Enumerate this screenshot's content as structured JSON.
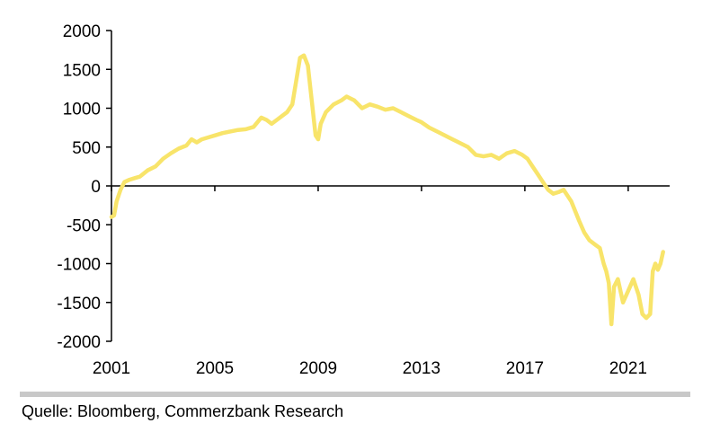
{
  "chart_data": {
    "type": "line",
    "title": "",
    "xlabel": "",
    "ylabel": "",
    "ylim": [
      -2000,
      2000
    ],
    "xlim": [
      2001.0,
      2022.5
    ],
    "y_ticks": [
      2000,
      1500,
      1000,
      500,
      0,
      -500,
      -1000,
      -1500,
      -2000
    ],
    "y_tick_labels": [
      "2000",
      "1500",
      "1000",
      "500",
      "0",
      "-500",
      "-1000",
      "-1500",
      "-2000"
    ],
    "x_ticks": [
      2001,
      2005,
      2009,
      2013,
      2017,
      2021
    ],
    "x_tick_labels": [
      "2001",
      "2005",
      "2009",
      "2013",
      "2017",
      "2021"
    ],
    "grid": false,
    "legend": "none",
    "series": [
      {
        "name": "Series",
        "color": "#f8e46a",
        "x": [
          2001.0,
          2001.1,
          2001.2,
          2001.35,
          2001.5,
          2001.7,
          2001.9,
          2002.1,
          2002.4,
          2002.7,
          2003.0,
          2003.3,
          2003.6,
          2003.9,
          2004.1,
          2004.3,
          2004.5,
          2004.7,
          2005.0,
          2005.3,
          2005.6,
          2005.9,
          2006.2,
          2006.5,
          2006.8,
          2007.0,
          2007.2,
          2007.4,
          2007.6,
          2007.8,
          2008.0,
          2008.15,
          2008.3,
          2008.45,
          2008.6,
          2008.75,
          2008.9,
          2009.0,
          2009.1,
          2009.3,
          2009.6,
          2009.9,
          2010.1,
          2010.4,
          2010.7,
          2011.0,
          2011.3,
          2011.6,
          2011.9,
          2012.2,
          2012.5,
          2012.8,
          2013.0,
          2013.3,
          2013.6,
          2013.9,
          2014.2,
          2014.5,
          2014.8,
          2015.1,
          2015.4,
          2015.7,
          2016.0,
          2016.3,
          2016.6,
          2016.9,
          2017.1,
          2017.3,
          2017.5,
          2017.7,
          2017.9,
          2018.1,
          2018.3,
          2018.5,
          2018.8,
          2019.1,
          2019.3,
          2019.5,
          2019.7,
          2019.9,
          2020.05,
          2020.15,
          2020.25,
          2020.35,
          2020.45,
          2020.6,
          2020.8,
          2021.0,
          2021.2,
          2021.4,
          2021.55,
          2021.7,
          2021.85,
          2021.95,
          2022.05,
          2022.15,
          2022.25,
          2022.35
        ],
        "values": [
          -400,
          -380,
          -200,
          -50,
          50,
          80,
          100,
          120,
          200,
          250,
          350,
          420,
          480,
          520,
          600,
          560,
          600,
          620,
          650,
          680,
          700,
          720,
          730,
          760,
          880,
          850,
          800,
          850,
          900,
          950,
          1050,
          1350,
          1650,
          1680,
          1550,
          1100,
          650,
          600,
          800,
          950,
          1050,
          1100,
          1150,
          1100,
          1000,
          1050,
          1020,
          980,
          1000,
          950,
          900,
          850,
          820,
          750,
          700,
          650,
          600,
          550,
          500,
          400,
          380,
          400,
          350,
          420,
          450,
          400,
          350,
          250,
          150,
          50,
          -50,
          -100,
          -80,
          -50,
          -200,
          -450,
          -600,
          -700,
          -750,
          -800,
          -1000,
          -1100,
          -1250,
          -1780,
          -1300,
          -1200,
          -1500,
          -1350,
          -1200,
          -1400,
          -1650,
          -1700,
          -1650,
          -1100,
          -1000,
          -1080,
          -1000,
          -850
        ]
      }
    ]
  },
  "source": "Quelle: Bloomberg, Commerzbank Research"
}
